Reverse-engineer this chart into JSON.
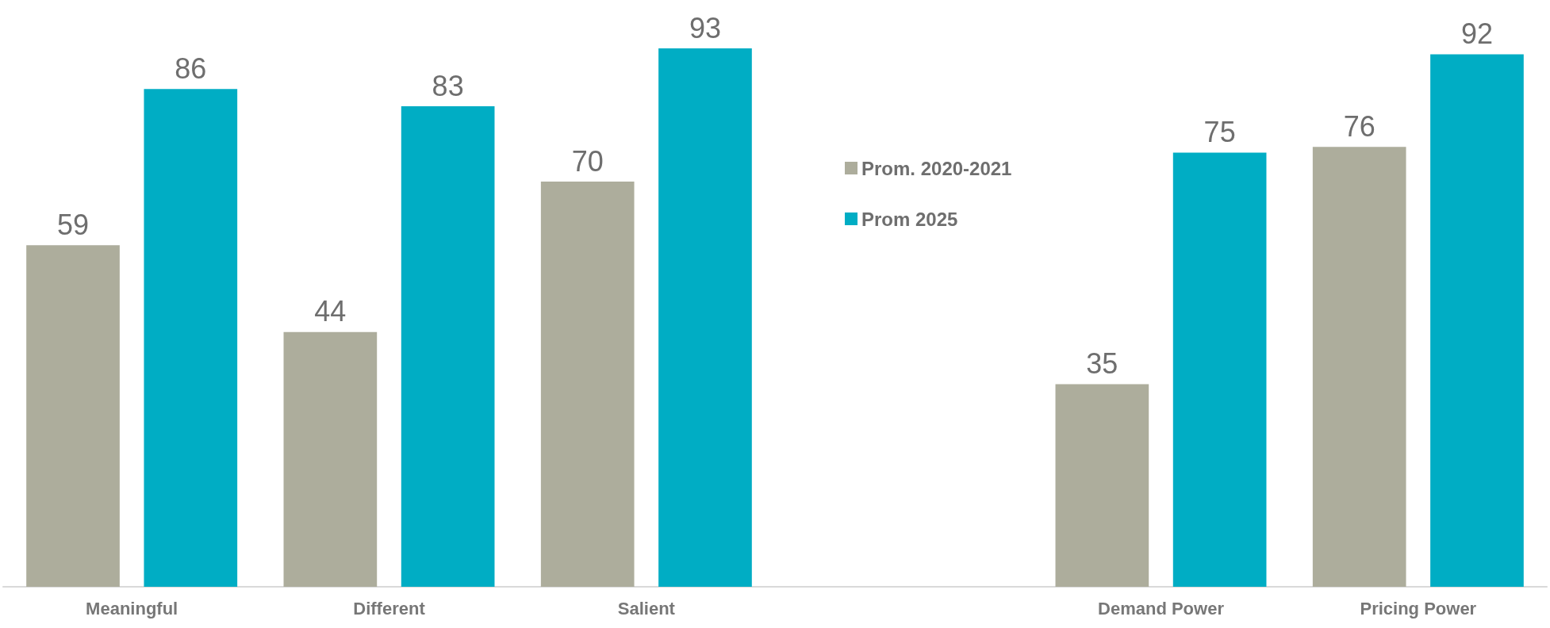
{
  "chart_data": {
    "type": "bar",
    "categories": [
      "Meaningful",
      "Different",
      "Salient",
      null,
      "Demand Power",
      "Pricing Power"
    ],
    "series": [
      {
        "name": "Prom. 2020-2021",
        "color": "#adad9c",
        "values": [
          59,
          44,
          70,
          null,
          35,
          76
        ]
      },
      {
        "name": "Prom 2025",
        "color": "#00adc4",
        "values": [
          86,
          83,
          93,
          null,
          75,
          92
        ]
      }
    ],
    "data_labels": true,
    "legend": "top",
    "grid": false
  }
}
